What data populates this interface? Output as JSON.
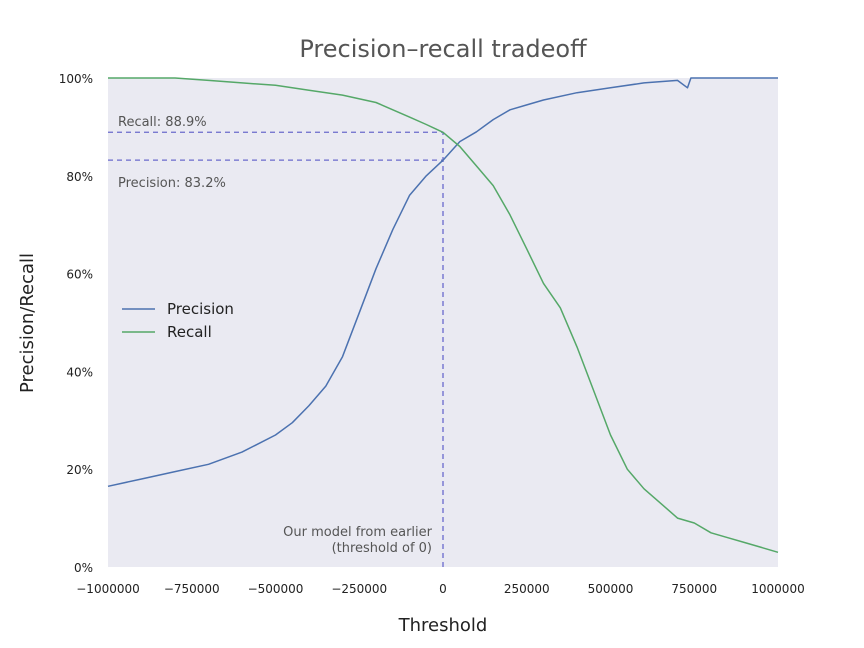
{
  "chart_data": {
    "type": "line",
    "title": "Precision–recall tradeoff",
    "xlabel": "Threshold",
    "ylabel": "Precision/Recall",
    "xlim": [
      -1000000,
      1000000
    ],
    "ylim": [
      0,
      1
    ],
    "x_ticks": [
      -1000000,
      -750000,
      -500000,
      -250000,
      0,
      250000,
      500000,
      750000,
      1000000
    ],
    "x_tick_labels": [
      "−1000000",
      "−750000",
      "−500000",
      "−250000",
      "0",
      "250000",
      "500000",
      "750000",
      "1000000"
    ],
    "y_ticks": [
      0,
      0.2,
      0.4,
      0.6,
      0.8,
      1.0
    ],
    "y_tick_labels": [
      "0%",
      "20%",
      "40%",
      "60%",
      "80%",
      "100%"
    ],
    "grid": false,
    "legend_position": "center-left",
    "series": [
      {
        "name": "Precision",
        "color": "#4c72b0",
        "x": [
          -1000000,
          -900000,
          -800000,
          -700000,
          -600000,
          -500000,
          -450000,
          -400000,
          -350000,
          -300000,
          -250000,
          -200000,
          -150000,
          -100000,
          -50000,
          0,
          50000,
          100000,
          150000,
          200000,
          250000,
          300000,
          400000,
          500000,
          600000,
          700000,
          730000,
          740000,
          800000,
          900000,
          1000000
        ],
        "y": [
          0.165,
          0.18,
          0.195,
          0.21,
          0.235,
          0.27,
          0.295,
          0.33,
          0.37,
          0.43,
          0.52,
          0.61,
          0.69,
          0.76,
          0.8,
          0.832,
          0.87,
          0.89,
          0.915,
          0.935,
          0.945,
          0.955,
          0.97,
          0.98,
          0.99,
          0.995,
          0.98,
          1.0,
          1.0,
          1.0,
          1.0
        ]
      },
      {
        "name": "Recall",
        "color": "#55a868",
        "x": [
          -1000000,
          -900000,
          -800000,
          -700000,
          -600000,
          -500000,
          -400000,
          -300000,
          -200000,
          -150000,
          -100000,
          -50000,
          0,
          50000,
          100000,
          150000,
          200000,
          250000,
          300000,
          350000,
          400000,
          450000,
          500000,
          550000,
          600000,
          650000,
          700000,
          750000,
          800000,
          850000,
          900000,
          950000,
          1000000
        ],
        "y": [
          1.0,
          1.0,
          1.0,
          0.995,
          0.99,
          0.985,
          0.975,
          0.965,
          0.95,
          0.935,
          0.92,
          0.905,
          0.889,
          0.86,
          0.82,
          0.78,
          0.72,
          0.65,
          0.58,
          0.53,
          0.45,
          0.36,
          0.27,
          0.2,
          0.16,
          0.13,
          0.1,
          0.09,
          0.07,
          0.06,
          0.05,
          0.04,
          0.03
        ]
      }
    ],
    "annotations": {
      "recall_label": "Recall: 88.9%",
      "recall_value": 0.889,
      "precision_label": "Precision: 83.2%",
      "precision_value": 0.832,
      "threshold_line1": "Our model from earlier",
      "threshold_line2": "(threshold of 0)",
      "threshold_value": 0,
      "guide_color": "#6a6acc"
    },
    "colors": {
      "plot_background": "#eaeaf2"
    }
  }
}
